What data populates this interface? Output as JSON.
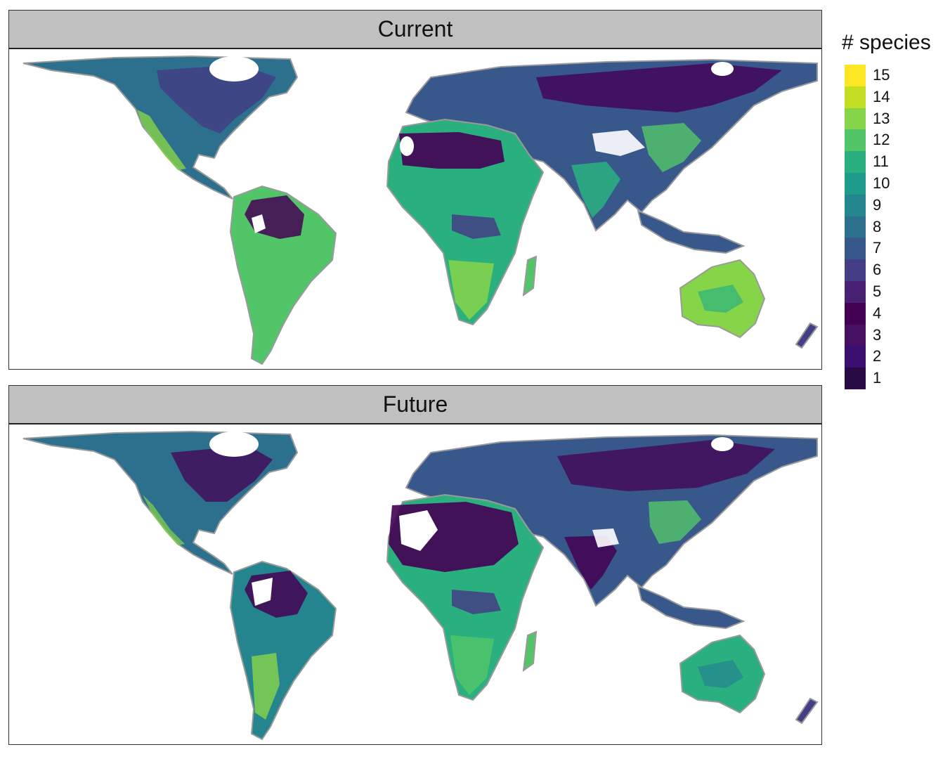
{
  "panels": {
    "current": {
      "title": "Current"
    },
    "future": {
      "title": "Future"
    }
  },
  "legend": {
    "title": "# species",
    "levels": [
      "15",
      "14",
      "13",
      "12",
      "11",
      "10",
      "9",
      "8",
      "7",
      "6",
      "5",
      "4",
      "3",
      "2",
      "1"
    ],
    "colors": [
      "#fde725",
      "#c2df23",
      "#86d549",
      "#52c569",
      "#2ab07f",
      "#1e9b8a",
      "#25858e",
      "#2d708e",
      "#38588c",
      "#433e85",
      "#482173",
      "#440154",
      "#471063",
      "#3b0f70",
      "#2a0a45"
    ]
  },
  "palette": {
    "ocean": "#ffffff",
    "coast": "#9a9a9a",
    "ice": "#ffffff"
  }
}
